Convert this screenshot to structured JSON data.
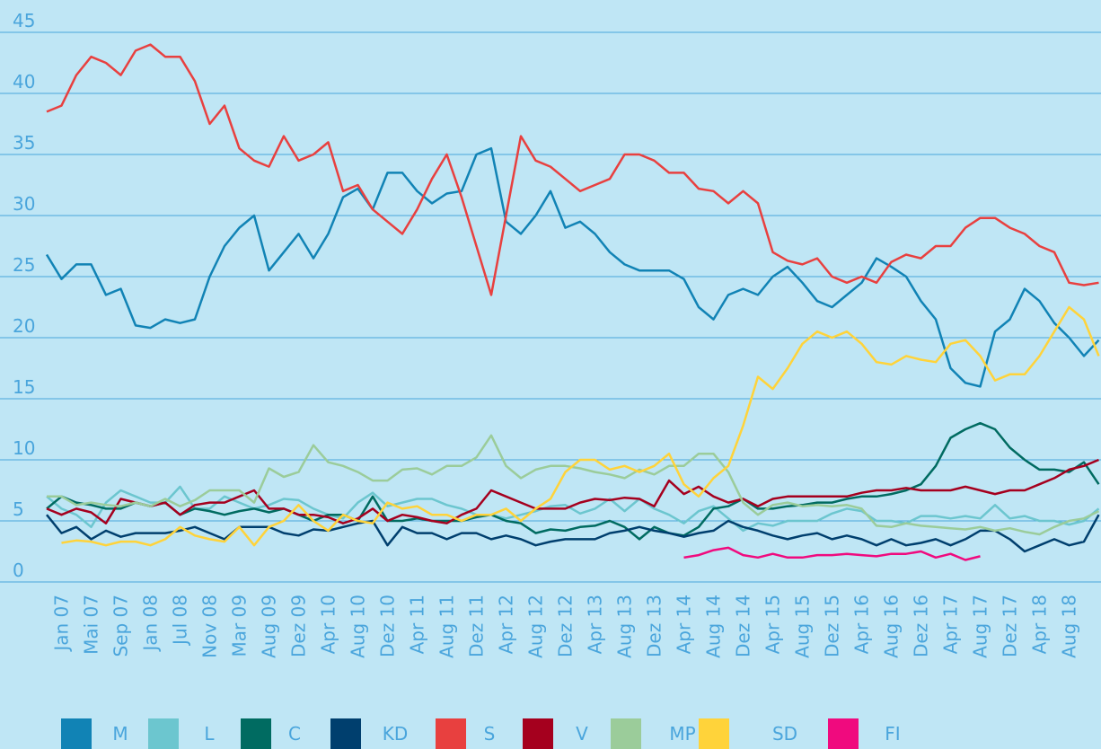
{
  "chart_data": {
    "type": "line",
    "categories": [
      null,
      "Jan 07",
      null,
      "Mai 07",
      null,
      "Sep 07",
      null,
      "Jan 08",
      null,
      "Jul 08",
      null,
      "Nov 08",
      null,
      "Mar 09",
      null,
      "Aug 09",
      null,
      "Dez 09",
      null,
      "Apr 10",
      null,
      "Aug 10",
      null,
      "Dez 10",
      null,
      "Apr 11",
      null,
      "Aug 11",
      null,
      "Dez 11",
      null,
      "Apr 12",
      null,
      "Aug 12",
      null,
      "Dez 12",
      null,
      "Apr 13",
      null,
      "Aug 13",
      null,
      "Dez 13",
      null,
      "Apr 14",
      null,
      "Aug 14",
      null,
      "Dez 14",
      null,
      "Apr 15",
      null,
      "Aug 15",
      null,
      "Dez 15",
      null,
      "Apr 16",
      null,
      "Aug 16",
      null,
      "Dez 16",
      null,
      "Apr 17",
      null,
      "Aug 17",
      null,
      "Dez 17",
      null,
      "Apr 18",
      null,
      "Aug 18",
      null,
      null
    ],
    "ylim": [
      0,
      45
    ],
    "yticks": [
      0,
      5,
      10,
      15,
      20,
      25,
      30,
      35,
      40,
      45
    ],
    "grid": true,
    "series": [
      {
        "name": "M",
        "color": "#1183b5",
        "values": [
          26.8,
          24.8,
          26,
          26,
          23.5,
          24,
          21,
          20.8,
          21.5,
          21.2,
          21.5,
          25,
          27.5,
          29,
          30,
          25.5,
          27,
          28.5,
          26.5,
          28.5,
          31.5,
          32.2,
          30.5,
          33.5,
          33.5,
          32,
          31,
          31.8,
          32,
          35,
          35.5,
          29.5,
          28.5,
          30,
          32,
          29,
          29.5,
          28.5,
          27,
          26,
          25.5,
          25.5,
          25.5,
          24.8,
          22.5,
          21.5,
          23.5,
          24,
          23.5,
          25,
          25.8,
          24.5,
          23,
          22.5,
          23.5,
          24.5,
          26.5,
          25.8,
          25,
          23,
          21.5,
          17.5,
          16.3,
          16,
          20.5,
          21.5,
          24,
          23,
          21.2,
          20,
          18.5,
          19.8
        ]
      },
      {
        "name": "L",
        "color": "#6cc6cf",
        "values": [
          7,
          6,
          5.5,
          4.5,
          6.5,
          7.5,
          7,
          6.5,
          6.5,
          7.8,
          6,
          6,
          7,
          6.5,
          6,
          6.3,
          6.8,
          6.7,
          6,
          5.5,
          5.2,
          6.5,
          7.3,
          6.2,
          6.5,
          6.8,
          6.8,
          6.3,
          6,
          5.5,
          5.5,
          5.2,
          5.5,
          5.8,
          6.2,
          6.3,
          5.6,
          6,
          6.8,
          5.8,
          6.8,
          6,
          5.5,
          4.8,
          5.8,
          6.2,
          5.2,
          4.2,
          4.8,
          4.6,
          5,
          5,
          5,
          5.6,
          6,
          5.8,
          5,
          5,
          4.8,
          5.4,
          5.4,
          5.2,
          5.4,
          5.2,
          6.3,
          5.2,
          5.4,
          5,
          5,
          4.7,
          5,
          6
        ]
      },
      {
        "name": "C",
        "color": "#006b61",
        "values": [
          6,
          7,
          6.5,
          6.3,
          6,
          6,
          6.5,
          6.2,
          6.5,
          5.5,
          6,
          5.8,
          5.5,
          5.8,
          6,
          5.7,
          6,
          5.5,
          5,
          5.5,
          5.5,
          5,
          7,
          5,
          5,
          5.2,
          5,
          5,
          5,
          5.3,
          5.5,
          5,
          4.8,
          4,
          4.3,
          4.2,
          4.5,
          4.6,
          5,
          4.5,
          3.5,
          4.5,
          4,
          3.8,
          4.5,
          6,
          6.2,
          6.8,
          6,
          6,
          6.2,
          6.3,
          6.5,
          6.5,
          6.8,
          7,
          7,
          7.2,
          7.5,
          8,
          9.5,
          11.8,
          12.5,
          13,
          12.5,
          11,
          10,
          9.2,
          9.2,
          9,
          9.8,
          8
        ]
      },
      {
        "name": "KD",
        "color": "#003f6e",
        "values": [
          5.5,
          4,
          4.5,
          3.5,
          4.2,
          3.7,
          4,
          4,
          4,
          4.2,
          4.5,
          4,
          3.5,
          4.5,
          4.5,
          4.5,
          4,
          3.8,
          4.3,
          4.2,
          4.5,
          4.8,
          5,
          3,
          4.5,
          4,
          4,
          3.5,
          4,
          4,
          3.5,
          3.8,
          3.5,
          3,
          3.3,
          3.5,
          3.5,
          3.5,
          4,
          4.2,
          4.5,
          4.2,
          4,
          3.7,
          4,
          4.2,
          5,
          4.5,
          4.2,
          3.8,
          3.5,
          3.8,
          4,
          3.5,
          3.8,
          3.5,
          3,
          3.5,
          3,
          3.2,
          3.5,
          3,
          3.5,
          4.2,
          4.2,
          3.5,
          2.5,
          3,
          3.5,
          3,
          3.3,
          5.5
        ]
      },
      {
        "name": "S",
        "color": "#e8403f",
        "values": [
          38.5,
          39,
          41.5,
          43,
          42.5,
          41.5,
          43.5,
          44,
          43,
          43,
          41,
          37.5,
          39,
          35.5,
          34.5,
          34,
          36.5,
          34.5,
          35,
          36,
          32,
          32.5,
          30.5,
          29.5,
          28.5,
          30.5,
          33,
          35,
          31.5,
          27.5,
          23.5,
          30,
          36.5,
          34.5,
          34,
          33,
          32,
          32.5,
          33,
          35,
          35,
          34.5,
          33.5,
          33.5,
          32.2,
          32,
          31,
          32,
          31,
          27,
          26.3,
          26,
          26.5,
          25,
          24.5,
          25,
          24.5,
          26.2,
          26.8,
          26.5,
          27.5,
          27.5,
          29,
          29.8,
          29.8,
          29,
          28.5,
          27.5,
          27,
          24.5,
          24.3,
          24.5
        ]
      },
      {
        "name": "V",
        "color": "#a5001e",
        "values": [
          6,
          5.5,
          6,
          5.7,
          4.8,
          6.8,
          6.5,
          6.2,
          6.5,
          5.5,
          6.3,
          6.5,
          6.5,
          7,
          7.5,
          6,
          6,
          5.5,
          5.5,
          5.3,
          4.8,
          5.2,
          6,
          5,
          5.5,
          5.3,
          5,
          4.8,
          5.5,
          6,
          7.5,
          7,
          6.5,
          6,
          6,
          6,
          6.5,
          6.8,
          6.7,
          6.9,
          6.8,
          6.2,
          8.3,
          7.2,
          7.8,
          7,
          6.5,
          6.8,
          6.2,
          6.8,
          7,
          7,
          7,
          7,
          7,
          7.3,
          7.5,
          7.5,
          7.7,
          7.5,
          7.5,
          7.5,
          7.8,
          7.5,
          7.2,
          7.5,
          7.5,
          8,
          8.5,
          9.2,
          9.5,
          10
        ]
      },
      {
        "name": "MP",
        "color": "#9bcc9a",
        "values": [
          7,
          7,
          6.3,
          6.5,
          6.3,
          6.2,
          6.5,
          6.2,
          6.8,
          6.2,
          6.7,
          7.5,
          7.5,
          7.5,
          6.5,
          9.3,
          8.6,
          9,
          11.2,
          9.8,
          9.5,
          9,
          8.3,
          8.3,
          9.2,
          9.3,
          8.8,
          9.5,
          9.5,
          10.2,
          12,
          9.5,
          8.5,
          9.2,
          9.5,
          9.5,
          9.3,
          9,
          8.8,
          8.5,
          9.2,
          8.8,
          9.5,
          9.5,
          10.5,
          10.5,
          9,
          6.5,
          5.5,
          6.3,
          6.5,
          6.2,
          6.3,
          6.2,
          6.3,
          6,
          4.6,
          4.5,
          4.8,
          4.6,
          4.5,
          4.4,
          4.3,
          4.5,
          4.2,
          4.4,
          4.1,
          3.9,
          4.5,
          5,
          5.2,
          5.8
        ]
      },
      {
        "name": "SD",
        "color": "#ffd33a",
        "values": [
          null,
          3.2,
          3.4,
          3.3,
          3,
          3.3,
          3.3,
          3,
          3.5,
          4.5,
          3.8,
          3.5,
          3.3,
          4.5,
          3,
          4.5,
          5,
          6.3,
          5,
          4.2,
          5.5,
          5,
          4.8,
          6.5,
          6,
          6.2,
          5.5,
          5.5,
          5,
          5.5,
          5.5,
          6,
          5,
          6,
          6.8,
          9,
          10,
          10,
          9.2,
          9.5,
          9,
          9.5,
          10.5,
          8,
          7,
          8.5,
          9.5,
          12.8,
          16.8,
          15.8,
          17.5,
          19.5,
          20.5,
          20,
          20.5,
          19.5,
          18,
          17.8,
          18.5,
          18.2,
          18,
          19.5,
          19.8,
          18.5,
          16.5,
          17,
          17,
          18.5,
          20.5,
          22.5,
          21.5,
          18.5
        ]
      },
      {
        "name": "FI",
        "color": "#f00a7e",
        "values": [
          null,
          null,
          null,
          null,
          null,
          null,
          null,
          null,
          null,
          null,
          null,
          null,
          null,
          null,
          null,
          null,
          null,
          null,
          null,
          null,
          null,
          null,
          null,
          null,
          null,
          null,
          null,
          null,
          null,
          null,
          null,
          null,
          null,
          null,
          null,
          null,
          null,
          null,
          null,
          null,
          null,
          null,
          null,
          2,
          2.2,
          2.6,
          2.8,
          2.2,
          2,
          2.3,
          2,
          2,
          2.2,
          2.2,
          2.3,
          2.2,
          2.1,
          2.3,
          2.3,
          2.5,
          2,
          2.3,
          1.8,
          2.1,
          null,
          null,
          null,
          null,
          null,
          null,
          null,
          null
        ]
      }
    ]
  }
}
